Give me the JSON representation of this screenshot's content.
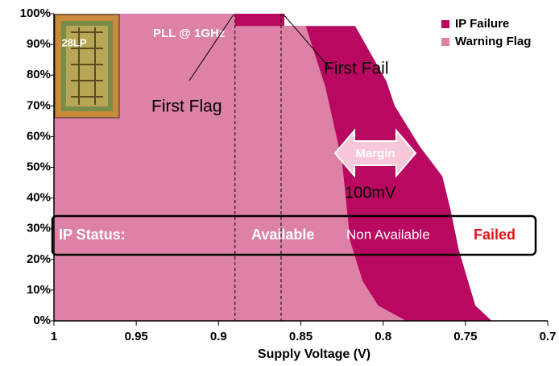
{
  "chart_data": {
    "type": "area",
    "xlabel": "Supply Voltage (V)",
    "xlim": [
      1,
      0.7
    ],
    "xticks": [
      1,
      0.95,
      0.9,
      0.85,
      0.8,
      0.75,
      0.7
    ],
    "ylim": [
      0,
      100
    ],
    "yticks": [
      {
        "value": 0,
        "label": "0%"
      },
      {
        "value": 10,
        "label": "10%"
      },
      {
        "value": 20,
        "label": "20%"
      },
      {
        "value": 30,
        "label": "30%"
      },
      {
        "value": 40,
        "label": "40%"
      },
      {
        "value": 50,
        "label": "50%"
      },
      {
        "value": 60,
        "label": "60%"
      },
      {
        "value": 70,
        "label": "70%"
      },
      {
        "value": 80,
        "label": "80%"
      },
      {
        "value": 90,
        "label": "90%"
      },
      {
        "value": 100,
        "label": "100%"
      }
    ],
    "series": [
      {
        "name": "IP Failure",
        "color": "#b8085f",
        "x": [
          1,
          0.89,
          0.86,
          0.86,
          0.817,
          0.798,
          0.793,
          0.778,
          0.764,
          0.759,
          0.754,
          0.744,
          0.734
        ],
        "values": [
          100,
          100,
          100,
          96,
          96,
          78,
          70,
          57,
          47,
          36,
          23,
          5,
          0
        ]
      },
      {
        "name": "Warning Flag",
        "color": "#dd82a6",
        "x": [
          1,
          0.89,
          0.89,
          0.847,
          0.835,
          0.825,
          0.82,
          0.8125,
          0.803,
          0.786
        ],
        "values": [
          100,
          100,
          96,
          96,
          76,
          52,
          26,
          13,
          5,
          0
        ]
      }
    ],
    "vlines": [
      0.89,
      0.862
    ],
    "annotations": {
      "pll": "PLL @ 1GHz",
      "chip": "28LP",
      "first_flag": "First Flag",
      "first_fail": "First Fail",
      "margin": "Margin",
      "margin_value": "100mV",
      "status": "IP Status:",
      "available": "Available",
      "non_available": "Non Available",
      "failed": "Failed"
    }
  }
}
